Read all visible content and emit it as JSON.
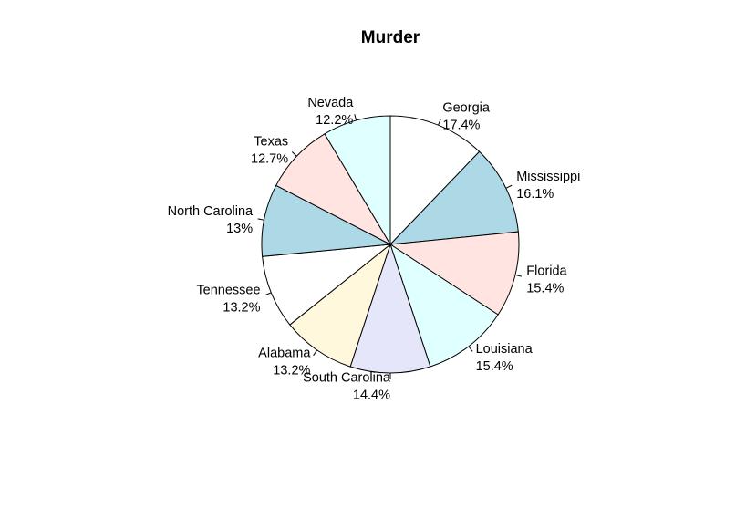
{
  "chart_data": {
    "type": "pie",
    "title": "Murder",
    "direction": "clockwise",
    "start": "top",
    "slices": [
      {
        "label": "Georgia",
        "percent_label": "17.4%",
        "value": 17.4,
        "color": "#ffffff"
      },
      {
        "label": "Mississippi",
        "percent_label": "16.1%",
        "value": 16.1,
        "color": "#add8e6"
      },
      {
        "label": "Florida",
        "percent_label": "15.4%",
        "value": 15.4,
        "color": "#ffe4e1"
      },
      {
        "label": "Louisiana",
        "percent_label": "15.4%",
        "value": 15.4,
        "color": "#e0ffff"
      },
      {
        "label": "South Carolina",
        "percent_label": "14.4%",
        "value": 14.4,
        "color": "#e6e6fa"
      },
      {
        "label": "Alabama",
        "percent_label": "13.2%",
        "value": 13.2,
        "color": "#fff8dc"
      },
      {
        "label": "Tennessee",
        "percent_label": "13.2%",
        "value": 13.2,
        "color": "#ffffff"
      },
      {
        "label": "North Carolina",
        "percent_label": "13%",
        "value": 13.0,
        "color": "#add8e6"
      },
      {
        "label": "Texas",
        "percent_label": "12.7%",
        "value": 12.7,
        "color": "#ffe4e1"
      },
      {
        "label": "Nevada",
        "percent_label": "12.2%",
        "value": 12.2,
        "color": "#e0ffff"
      }
    ]
  }
}
